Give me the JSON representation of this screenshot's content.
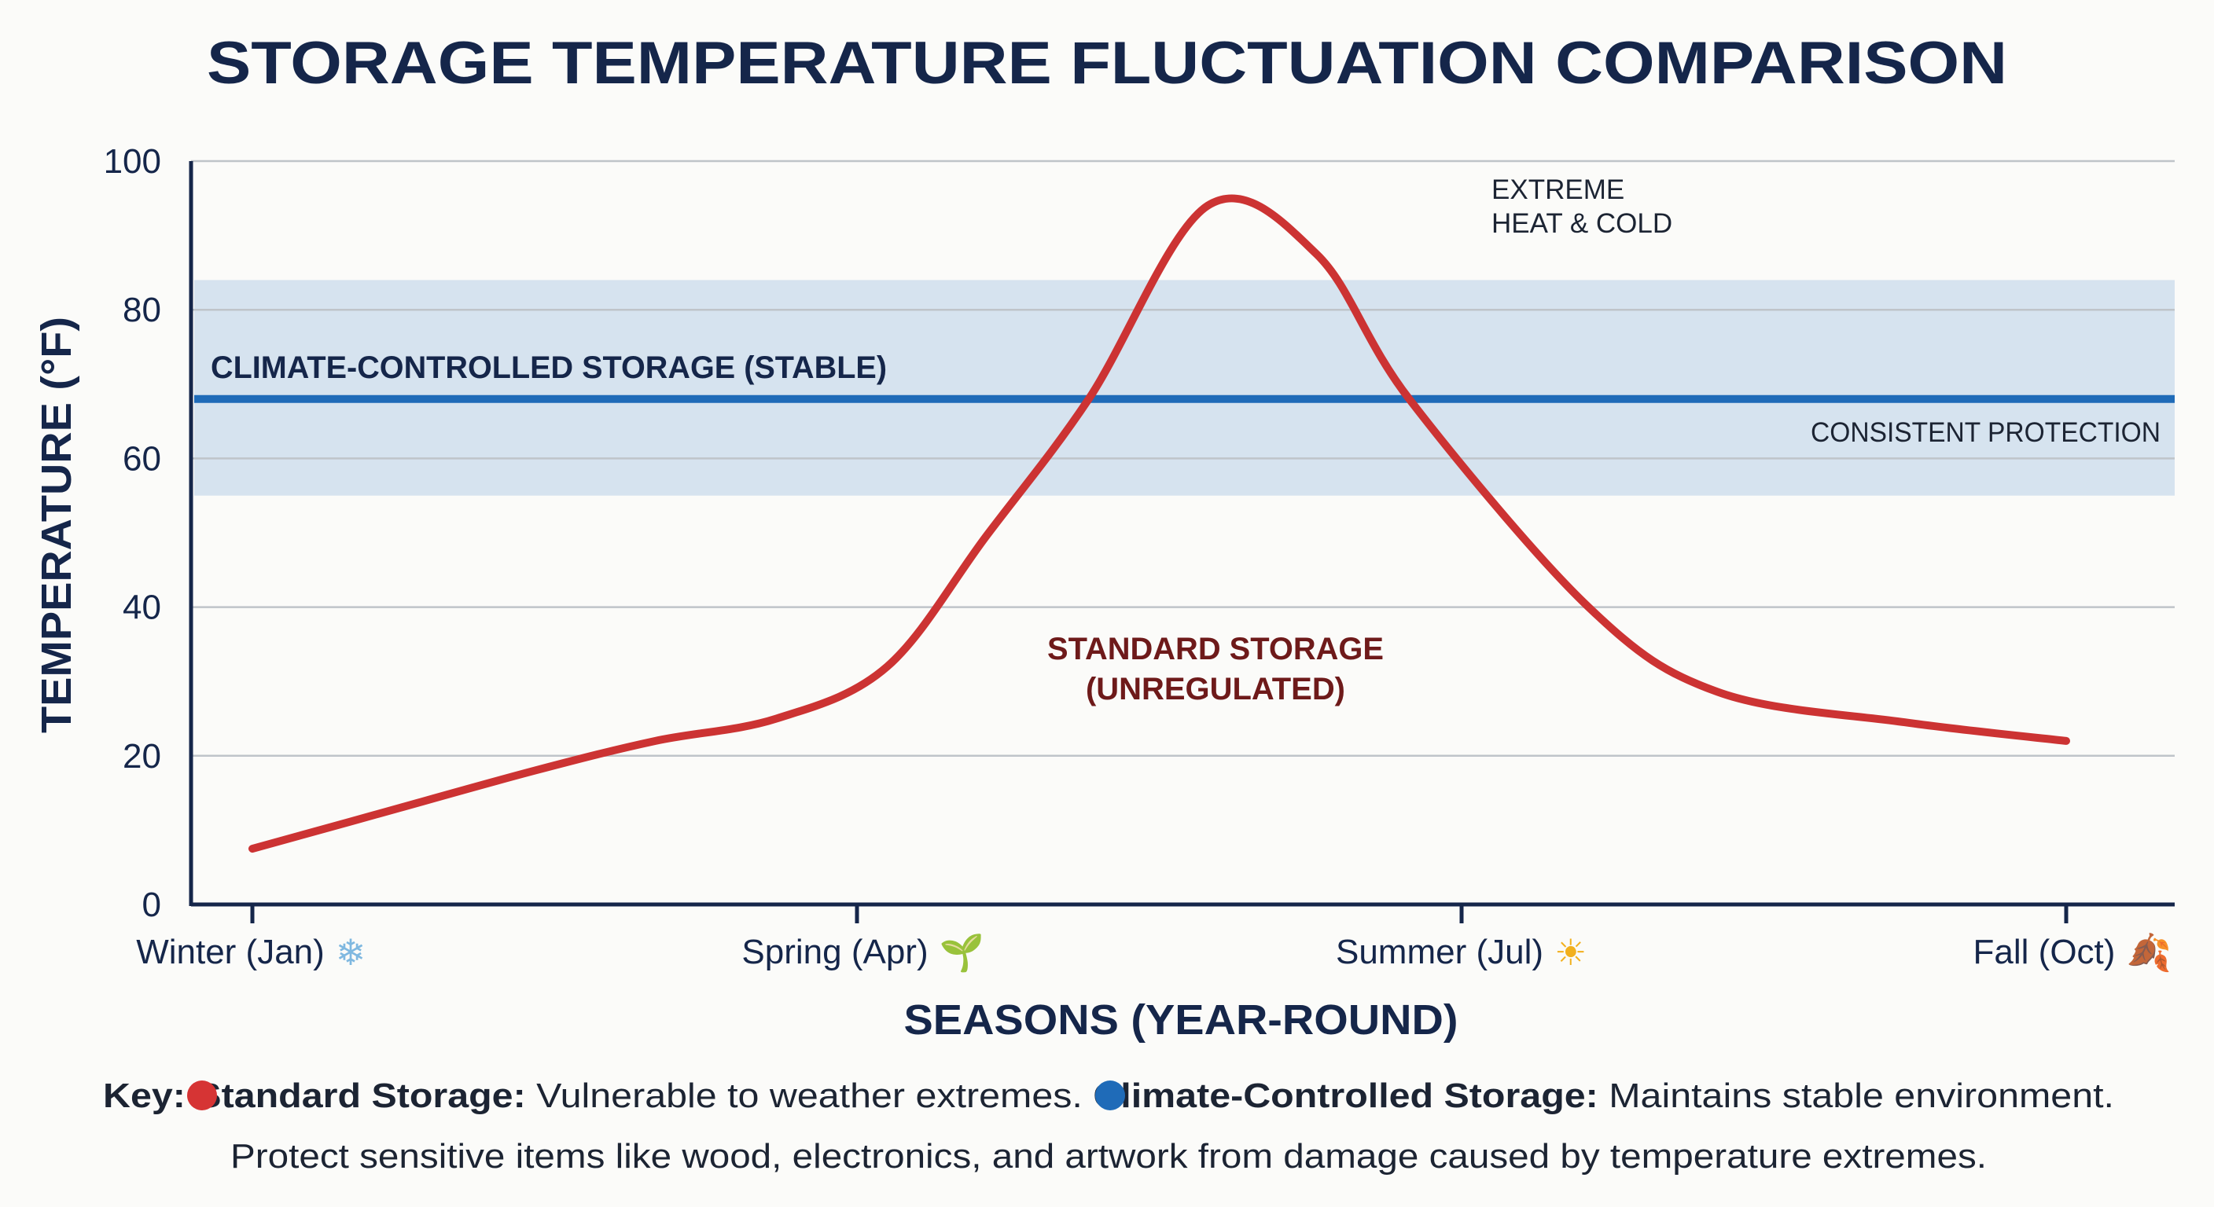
{
  "chart_data": {
    "type": "line",
    "title": "STORAGE TEMPERATURE FLUCTUATION COMPARISON",
    "xlabel": "SEASONS (YEAR-ROUND)",
    "ylabel": "TEMPERATURE (°F)",
    "ylim": [
      0,
      100
    ],
    "yticks": [
      "0",
      "20",
      "40",
      "60",
      "80",
      "100"
    ],
    "xticks": [
      {
        "month": 1,
        "label": "Winter (Jan)",
        "icon": "snowflake-icon"
      },
      {
        "month": 4,
        "label": "Spring (Apr)",
        "icon": "seedling-icon"
      },
      {
        "month": 7,
        "label": "Summer (Jul)",
        "icon": "sun-icon"
      },
      {
        "month": 10,
        "label": "Fall (Oct)",
        "icon": "autumn-leaf-icon"
      }
    ],
    "grid": true,
    "series": [
      {
        "name": "Standard Storage",
        "color": "#cc3333",
        "x": [
          1,
          1.6,
          2.4,
          3.0,
          3.6,
          4.15,
          4.64,
          5.15,
          5.74,
          6.28,
          6.74,
          7.63,
          8.27,
          9.2,
          10
        ],
        "y": [
          7.5,
          12,
          18,
          22,
          25,
          32,
          49.5,
          68,
          94,
          87.5,
          68,
          40,
          28.6,
          24.5,
          22
        ]
      },
      {
        "name": "Climate-Controlled Storage",
        "color": "#1f6bb8",
        "x": [
          1,
          10
        ],
        "y": [
          68,
          68
        ],
        "band": [
          55,
          84
        ],
        "band_color": "#d6e3ef"
      }
    ],
    "annotations": {
      "climate_label": "CLIMATE-CONTROLLED STORAGE (STABLE)",
      "consistent": "CONSISTENT PROTECTION",
      "extreme_line1": "EXTREME",
      "extreme_line2": "HEAT & COLD",
      "standard_line1": "STANDARD STORAGE",
      "standard_line2": "(UNREGULATED)"
    }
  },
  "key": {
    "prefix": "Key:",
    "standard_title": "Standard Storage:",
    "standard_desc": "Vulnerable to weather extremes.",
    "climate_title": "Climate-Controlled Storage:",
    "climate_desc": "Maintains stable environment.",
    "note": "Protect sensitive items like wood, electronics, and artwork from damage caused by temperature extremes."
  }
}
